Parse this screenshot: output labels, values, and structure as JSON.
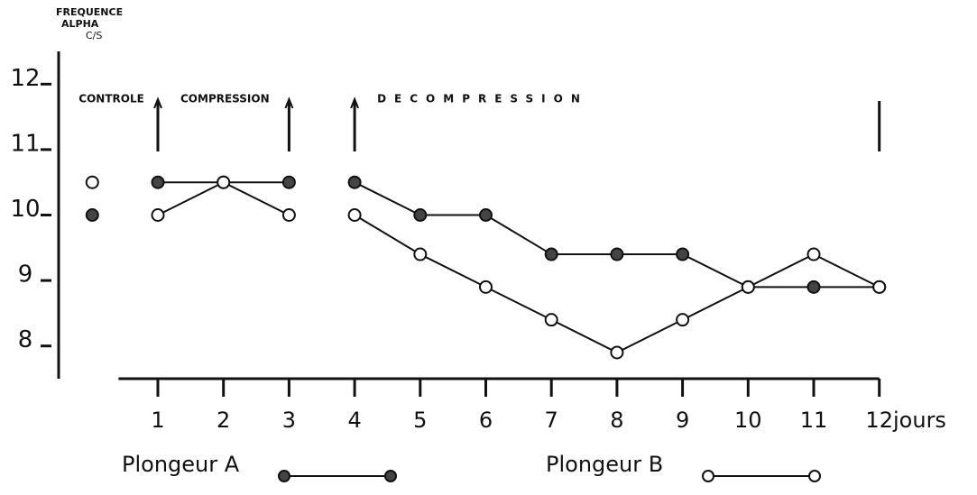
{
  "chart_data": {
    "type": "line",
    "y_label": [
      "FREQUENCE",
      "ALPHA",
      "C/S"
    ],
    "x_label": "jours",
    "x": [
      0,
      1,
      2,
      3,
      4,
      5,
      6,
      7,
      8,
      9,
      10,
      11,
      12
    ],
    "series": [
      {
        "name": "Plongeur A",
        "color": "#444444",
        "filled": true,
        "values": [
          10,
          10.5,
          10.5,
          10.5,
          10.5,
          10,
          10,
          9.4,
          9.4,
          9.4,
          8.9,
          8.9,
          8.9
        ]
      },
      {
        "name": "Plongeur B",
        "color": "#ffffff",
        "filled": false,
        "values": [
          10.5,
          10,
          10.5,
          10,
          10,
          9.4,
          8.9,
          8.4,
          7.9,
          8.4,
          8.9,
          9.4,
          8.9
        ]
      }
    ],
    "phases": [
      {
        "label": "CONTROLE",
        "start": 0,
        "end": 0
      },
      {
        "label": "COMPRESSION",
        "start": 1,
        "end": 3
      },
      {
        "label": "DECOMPRESSION",
        "start": 4,
        "end": 12
      }
    ],
    "xlim": [
      0.4,
      12
    ],
    "xticks": [
      1,
      2,
      3,
      4,
      5,
      6,
      7,
      8,
      9,
      10,
      11,
      12
    ],
    "ylim": [
      7.5,
      12.5
    ],
    "yticks": [
      8,
      9,
      10,
      11,
      12
    ],
    "grid": false
  }
}
